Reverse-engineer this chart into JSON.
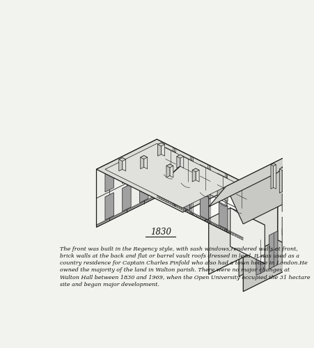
{
  "title": "1830",
  "background_color": "#f2f2ee",
  "line_color": "#1a1a1a",
  "face_white": "#f8f8f5",
  "face_light": "#ededea",
  "face_mid": "#e0e0dc",
  "face_dark": "#d0d0cc",
  "face_roof": "#dcdcd8",
  "face_shadow": "#c8c8c4",
  "win_color": "#b8b8b4",
  "win_dark": "#a0a0a0",
  "title_fontsize": 8.5,
  "desc_fontsize": 5.8,
  "description_line1": "The front was built in the Regency style, with sash windows,rendered walls at front,",
  "description_line2": "brick walls at the back and flat or barrel vault roofs dressed in lead. It was used as a",
  "description_line3": "country residence for Captain Charles Pinfold who also had a town house in London.He",
  "description_line4": "owned the majority of the land in Walton parish. There were no major changes at",
  "description_line5": "Walton Hall between 1830 and 1969, when the Open University occupied the 31 hectare",
  "description_line6": "site and began major development."
}
